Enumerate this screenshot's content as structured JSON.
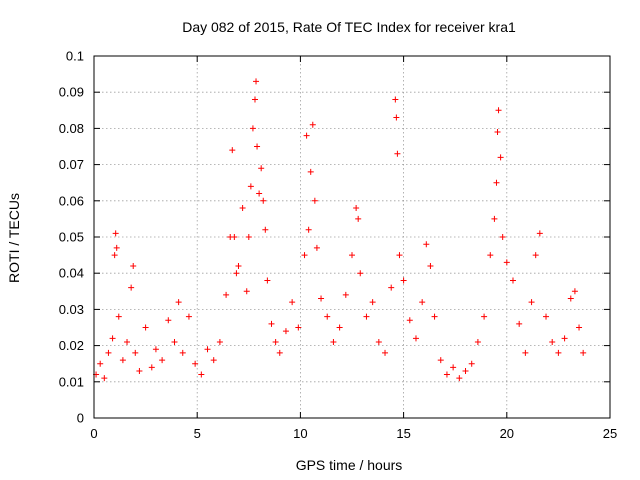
{
  "chart_data": {
    "type": "scatter",
    "title": "Day 082 of 2015, Rate Of TEC Index for receiver kra1",
    "xlabel": "GPS time / hours",
    "ylabel": "ROTI / TECUs",
    "xlim": [
      0,
      25
    ],
    "ylim": [
      0,
      0.1
    ],
    "xticks": [
      0,
      5,
      10,
      15,
      20,
      25
    ],
    "xtick_labels": [
      "0",
      "5",
      "10",
      "15",
      "20",
      "25"
    ],
    "yticks": [
      0,
      0.01,
      0.02,
      0.03,
      0.04,
      0.05,
      0.06,
      0.07,
      0.08,
      0.09,
      0.1
    ],
    "ytick_labels": [
      "0",
      "0.01",
      "0.02",
      "0.03",
      "0.04",
      "0.05",
      "0.06",
      "0.07",
      "0.08",
      "0.09",
      "0.1"
    ],
    "grid": true,
    "marker": "plus",
    "color": "#ff0000",
    "series": [
      {
        "x": [
          0.1,
          0.3,
          0.5,
          0.7,
          0.9,
          1.0,
          1.05,
          1.1,
          1.2,
          1.4,
          1.6,
          1.8,
          1.9,
          2.0,
          2.2,
          2.5,
          2.8,
          3.0,
          3.3,
          3.6,
          3.9,
          4.1,
          4.3,
          4.6,
          4.9,
          5.2,
          5.5,
          5.8,
          6.1,
          6.4,
          6.6,
          6.7,
          6.8,
          6.9,
          7.0,
          7.2,
          7.4,
          7.5,
          7.6,
          7.7,
          7.8,
          7.85,
          7.9,
          8.0,
          8.1,
          8.2,
          8.3,
          8.4,
          8.6,
          8.8,
          9.0,
          9.3,
          9.6,
          9.9,
          10.2,
          10.3,
          10.4,
          10.5,
          10.6,
          10.7,
          10.8,
          11.0,
          11.3,
          11.6,
          11.9,
          12.2,
          12.5,
          12.7,
          12.8,
          12.9,
          13.2,
          13.5,
          13.8,
          14.1,
          14.4,
          14.6,
          14.65,
          14.7,
          14.8,
          15.0,
          15.3,
          15.6,
          15.9,
          16.1,
          16.3,
          16.5,
          16.8,
          17.1,
          17.4,
          17.7,
          18.0,
          18.3,
          18.6,
          18.9,
          19.2,
          19.4,
          19.5,
          19.55,
          19.6,
          19.7,
          19.8,
          20.0,
          20.3,
          20.6,
          20.9,
          21.2,
          21.4,
          21.6,
          21.9,
          22.2,
          22.5,
          22.8,
          23.1,
          23.3,
          23.5,
          23.7
        ],
        "y": [
          0.012,
          0.015,
          0.011,
          0.018,
          0.022,
          0.045,
          0.051,
          0.047,
          0.028,
          0.016,
          0.021,
          0.036,
          0.042,
          0.018,
          0.013,
          0.025,
          0.014,
          0.019,
          0.016,
          0.027,
          0.021,
          0.032,
          0.018,
          0.028,
          0.015,
          0.012,
          0.019,
          0.016,
          0.021,
          0.034,
          0.05,
          0.074,
          0.05,
          0.04,
          0.042,
          0.058,
          0.035,
          0.05,
          0.064,
          0.08,
          0.088,
          0.093,
          0.075,
          0.062,
          0.069,
          0.06,
          0.052,
          0.038,
          0.026,
          0.021,
          0.018,
          0.024,
          0.032,
          0.025,
          0.045,
          0.078,
          0.052,
          0.068,
          0.081,
          0.06,
          0.047,
          0.033,
          0.028,
          0.021,
          0.025,
          0.034,
          0.045,
          0.058,
          0.055,
          0.04,
          0.028,
          0.032,
          0.021,
          0.018,
          0.036,
          0.088,
          0.083,
          0.073,
          0.045,
          0.038,
          0.027,
          0.022,
          0.032,
          0.048,
          0.042,
          0.028,
          0.016,
          0.012,
          0.014,
          0.011,
          0.013,
          0.015,
          0.021,
          0.028,
          0.045,
          0.055,
          0.065,
          0.079,
          0.085,
          0.072,
          0.05,
          0.043,
          0.038,
          0.026,
          0.018,
          0.032,
          0.045,
          0.051,
          0.028,
          0.021,
          0.018,
          0.022,
          0.033,
          0.035,
          0.025,
          0.018
        ]
      }
    ]
  }
}
